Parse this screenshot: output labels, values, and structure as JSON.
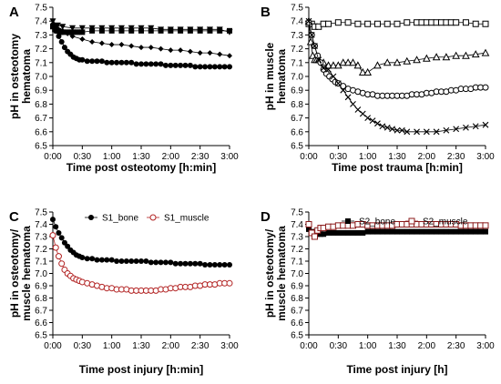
{
  "chart_data": [
    {
      "panel": "A",
      "type": "scatter",
      "ylabel_lines": [
        "pH in osteotomy",
        "hematoma"
      ],
      "xlabel": "Time post osteotomy [h:min]",
      "ylim": [
        6.5,
        7.5
      ],
      "yticks": [
        "6.5",
        "6.6",
        "6.7",
        "6.8",
        "6.9",
        "7.0",
        "7.1",
        "7.2",
        "7.3",
        "7.4",
        "7.5"
      ],
      "xlim": [
        0,
        180
      ],
      "xticks": [
        "0:00",
        "0:30",
        "1:00",
        "1:30",
        "2:00",
        "2:30",
        "3:00"
      ],
      "series": [
        {
          "marker": "square",
          "x": [
            0,
            2,
            4,
            6,
            8,
            10,
            15,
            20,
            25,
            30,
            40,
            50,
            60,
            70,
            80,
            90,
            100,
            110,
            120,
            130,
            140,
            150,
            160,
            170,
            180
          ],
          "y": [
            7.36,
            7.34,
            7.33,
            7.33,
            7.32,
            7.32,
            7.32,
            7.32,
            7.32,
            7.32,
            7.33,
            7.33,
            7.33,
            7.33,
            7.33,
            7.33,
            7.33,
            7.33,
            7.33,
            7.33,
            7.33,
            7.33,
            7.33,
            7.33,
            7.33
          ]
        },
        {
          "marker": "triangle-down",
          "x": [
            0,
            5,
            10,
            20,
            30,
            40,
            50,
            60,
            70,
            80,
            90,
            100,
            110,
            120,
            130,
            140,
            150,
            160,
            170,
            180
          ],
          "y": [
            7.4,
            7.37,
            7.36,
            7.35,
            7.35,
            7.35,
            7.35,
            7.35,
            7.35,
            7.35,
            7.35,
            7.35,
            7.34,
            7.34,
            7.34,
            7.34,
            7.34,
            7.34,
            7.34,
            7.32
          ]
        },
        {
          "marker": "diamond",
          "x": [
            0,
            3,
            6,
            10,
            15,
            20,
            30,
            40,
            50,
            60,
            70,
            80,
            90,
            100,
            110,
            120,
            130,
            140,
            150,
            160,
            170,
            180
          ],
          "y": [
            7.38,
            7.36,
            7.34,
            7.33,
            7.31,
            7.29,
            7.27,
            7.25,
            7.24,
            7.23,
            7.23,
            7.22,
            7.21,
            7.21,
            7.2,
            7.19,
            7.19,
            7.18,
            7.17,
            7.17,
            7.16,
            7.15
          ]
        },
        {
          "marker": "circle",
          "x": [
            0,
            3,
            6,
            9,
            12,
            15,
            18,
            21,
            24,
            27,
            30,
            35,
            40,
            45,
            50,
            55,
            60,
            65,
            70,
            75,
            80,
            85,
            90,
            95,
            100,
            105,
            110,
            115,
            120,
            125,
            130,
            135,
            140,
            145,
            150,
            155,
            160,
            165,
            170,
            175,
            180
          ],
          "y": [
            7.37,
            7.33,
            7.29,
            7.25,
            7.21,
            7.18,
            7.16,
            7.14,
            7.13,
            7.12,
            7.12,
            7.11,
            7.11,
            7.11,
            7.11,
            7.1,
            7.1,
            7.1,
            7.1,
            7.1,
            7.1,
            7.09,
            7.09,
            7.09,
            7.09,
            7.09,
            7.09,
            7.08,
            7.08,
            7.08,
            7.08,
            7.08,
            7.08,
            7.07,
            7.07,
            7.07,
            7.07,
            7.07,
            7.07,
            7.07,
            7.07
          ]
        }
      ]
    },
    {
      "panel": "B",
      "type": "scatter",
      "ylabel_lines": [
        "pH in muscle",
        "hematoma"
      ],
      "xlabel": "Time post trauma [h:min]",
      "ylim": [
        6.5,
        7.5
      ],
      "yticks": [
        "6.5",
        "6.6",
        "6.7",
        "6.8",
        "6.9",
        "7.0",
        "7.1",
        "7.2",
        "7.3",
        "7.4",
        "7.5"
      ],
      "xlim": [
        0,
        180
      ],
      "xticks": [
        "0:00",
        "0:30",
        "1:00",
        "1:30",
        "2:00",
        "2:30",
        "3:00"
      ],
      "series": [
        {
          "marker": "open-square",
          "x": [
            0,
            3,
            6,
            10,
            15,
            20,
            30,
            40,
            50,
            60,
            70,
            80,
            90,
            100,
            110,
            115,
            120,
            125,
            130,
            135,
            140,
            145,
            150,
            160,
            170,
            180
          ],
          "y": [
            7.38,
            7.38,
            7.36,
            7.36,
            7.38,
            7.38,
            7.39,
            7.39,
            7.38,
            7.38,
            7.38,
            7.38,
            7.38,
            7.39,
            7.39,
            7.39,
            7.39,
            7.39,
            7.39,
            7.39,
            7.39,
            7.39,
            7.39,
            7.39,
            7.38,
            7.38
          ]
        },
        {
          "marker": "open-triangle",
          "x": [
            0,
            2,
            4,
            6,
            8,
            10,
            15,
            20,
            25,
            30,
            35,
            40,
            45,
            50,
            55,
            60,
            70,
            80,
            90,
            100,
            110,
            120,
            130,
            140,
            150,
            160,
            170,
            180
          ],
          "y": [
            7.4,
            7.25,
            7.15,
            7.12,
            7.12,
            7.12,
            7.1,
            7.08,
            7.08,
            7.08,
            7.1,
            7.1,
            7.1,
            7.08,
            7.03,
            7.03,
            7.08,
            7.1,
            7.1,
            7.11,
            7.12,
            7.13,
            7.14,
            7.14,
            7.15,
            7.15,
            7.16,
            7.17
          ]
        },
        {
          "marker": "open-circle",
          "x": [
            0,
            3,
            6,
            9,
            12,
            15,
            18,
            21,
            24,
            27,
            30,
            35,
            40,
            45,
            50,
            55,
            60,
            65,
            70,
            75,
            80,
            85,
            90,
            95,
            100,
            105,
            110,
            115,
            120,
            125,
            130,
            135,
            140,
            145,
            150,
            155,
            160,
            165,
            170,
            175,
            180
          ],
          "y": [
            7.39,
            7.3,
            7.22,
            7.15,
            7.1,
            7.05,
            7.02,
            7.0,
            6.98,
            6.96,
            6.95,
            6.93,
            6.91,
            6.9,
            6.89,
            6.88,
            6.87,
            6.87,
            6.86,
            6.86,
            6.86,
            6.86,
            6.86,
            6.86,
            6.86,
            6.87,
            6.87,
            6.87,
            6.88,
            6.88,
            6.89,
            6.89,
            6.89,
            6.9,
            6.9,
            6.91,
            6.91,
            6.91,
            6.92,
            6.92,
            6.92
          ]
        },
        {
          "marker": "cross",
          "x": [
            0,
            3,
            6,
            10,
            15,
            20,
            25,
            30,
            35,
            40,
            45,
            50,
            55,
            60,
            65,
            70,
            75,
            80,
            85,
            90,
            95,
            100,
            110,
            120,
            130,
            140,
            150,
            160,
            170,
            180
          ],
          "y": [
            7.4,
            7.3,
            7.22,
            7.12,
            7.06,
            7.05,
            7.0,
            6.95,
            6.9,
            6.85,
            6.8,
            6.76,
            6.73,
            6.7,
            6.68,
            6.66,
            6.64,
            6.63,
            6.62,
            6.61,
            6.61,
            6.6,
            6.6,
            6.6,
            6.6,
            6.61,
            6.62,
            6.63,
            6.64,
            6.65
          ]
        }
      ]
    },
    {
      "panel": "C",
      "type": "line",
      "ylabel_lines": [
        "pH in osteotomy/",
        "muscle hematoma"
      ],
      "xlabel": "Time post injury [h:min]",
      "ylim": [
        6.5,
        7.5
      ],
      "yticks": [
        "6.5",
        "6.6",
        "6.7",
        "6.8",
        "6.9",
        "7.0",
        "7.1",
        "7.2",
        "7.3",
        "7.4",
        "7.5"
      ],
      "xlim": [
        0,
        180
      ],
      "xticks": [
        "0:00",
        "0:30",
        "1:00",
        "1:30",
        "2:00",
        "2:30",
        "3:00"
      ],
      "legend": [
        "S1_bone",
        "S1_muscle"
      ],
      "series": [
        {
          "name": "S1_bone",
          "marker": "filled-circle",
          "color": "#000000",
          "x": [
            0,
            3,
            6,
            9,
            12,
            15,
            18,
            21,
            24,
            27,
            30,
            35,
            40,
            45,
            50,
            55,
            60,
            65,
            70,
            75,
            80,
            85,
            90,
            95,
            100,
            105,
            110,
            115,
            120,
            125,
            130,
            135,
            140,
            145,
            150,
            155,
            160,
            165,
            170,
            175,
            180
          ],
          "y": [
            7.44,
            7.38,
            7.33,
            7.29,
            7.25,
            7.22,
            7.19,
            7.17,
            7.15,
            7.14,
            7.13,
            7.12,
            7.12,
            7.11,
            7.11,
            7.11,
            7.11,
            7.1,
            7.1,
            7.1,
            7.1,
            7.1,
            7.1,
            7.1,
            7.09,
            7.09,
            7.09,
            7.09,
            7.09,
            7.08,
            7.08,
            7.08,
            7.08,
            7.08,
            7.08,
            7.07,
            7.07,
            7.07,
            7.07,
            7.07,
            7.07
          ]
        },
        {
          "name": "S1_muscle",
          "marker": "open-circle",
          "color": "#b22222",
          "x": [
            0,
            3,
            6,
            9,
            12,
            15,
            18,
            21,
            24,
            27,
            30,
            35,
            40,
            45,
            50,
            55,
            60,
            65,
            70,
            75,
            80,
            85,
            90,
            95,
            100,
            105,
            110,
            115,
            120,
            125,
            130,
            135,
            140,
            145,
            150,
            155,
            160,
            165,
            170,
            175,
            180
          ],
          "y": [
            7.31,
            7.21,
            7.14,
            7.08,
            7.03,
            7.0,
            6.98,
            6.96,
            6.95,
            6.94,
            6.93,
            6.92,
            6.91,
            6.9,
            6.89,
            6.88,
            6.88,
            6.87,
            6.87,
            6.87,
            6.86,
            6.86,
            6.86,
            6.86,
            6.86,
            6.86,
            6.87,
            6.87,
            6.88,
            6.88,
            6.89,
            6.89,
            6.89,
            6.9,
            6.9,
            6.91,
            6.91,
            6.91,
            6.92,
            6.92,
            6.92
          ]
        }
      ]
    },
    {
      "panel": "D",
      "type": "line",
      "ylabel_lines": [
        "pH in osteotomy/",
        "muscle hematoma"
      ],
      "xlabel": "Time post injury [h]",
      "ylim": [
        6.5,
        7.5
      ],
      "yticks": [
        "6.5",
        "6.6",
        "6.7",
        "6.8",
        "6.9",
        "7.0",
        "7.1",
        "7.2",
        "7.3",
        "7.4",
        "7.5"
      ],
      "xlim": [
        0,
        180
      ],
      "xticks": [
        "0:00",
        "0:30",
        "1:00",
        "1:30",
        "2:00",
        "2:30",
        "3:00"
      ],
      "legend": [
        "S2_bone",
        "S2_muscle"
      ],
      "series": [
        {
          "name": "S2_bone",
          "marker": "filled-square",
          "color": "#000000",
          "x": [
            0,
            3,
            6,
            9,
            12,
            15,
            20,
            25,
            30,
            35,
            40,
            45,
            50,
            55,
            60,
            65,
            70,
            75,
            80,
            85,
            90,
            95,
            100,
            105,
            110,
            115,
            120,
            125,
            130,
            135,
            140,
            145,
            150,
            155,
            160,
            165,
            170,
            175,
            180
          ],
          "y": [
            7.36,
            7.34,
            7.32,
            7.32,
            7.32,
            7.32,
            7.33,
            7.33,
            7.33,
            7.33,
            7.33,
            7.33,
            7.33,
            7.33,
            7.34,
            7.34,
            7.34,
            7.34,
            7.34,
            7.34,
            7.34,
            7.34,
            7.34,
            7.34,
            7.34,
            7.34,
            7.34,
            7.34,
            7.34,
            7.34,
            7.34,
            7.34,
            7.34,
            7.34,
            7.34,
            7.34,
            7.34,
            7.34,
            7.34
          ]
        },
        {
          "name": "S2_muscle",
          "marker": "open-square",
          "color": "#8b1a1a",
          "x": [
            0,
            3,
            6,
            9,
            12,
            15,
            20,
            25,
            30,
            35,
            40,
            45,
            50,
            55,
            60,
            65,
            70,
            75,
            80,
            85,
            90,
            95,
            100,
            105,
            110,
            115,
            120,
            125,
            130,
            135,
            140,
            145,
            150,
            155,
            160,
            165,
            170,
            175,
            180
          ],
          "y": [
            7.4,
            7.33,
            7.3,
            7.35,
            7.37,
            7.37,
            7.38,
            7.38,
            7.39,
            7.39,
            7.39,
            7.39,
            7.4,
            7.4,
            7.39,
            7.39,
            7.39,
            7.39,
            7.39,
            7.39,
            7.4,
            7.4,
            7.4,
            7.4,
            7.4,
            7.4,
            7.4,
            7.4,
            7.4,
            7.4,
            7.4,
            7.4,
            7.4,
            7.39,
            7.39,
            7.39,
            7.39,
            7.39,
            7.39
          ]
        }
      ]
    }
  ]
}
